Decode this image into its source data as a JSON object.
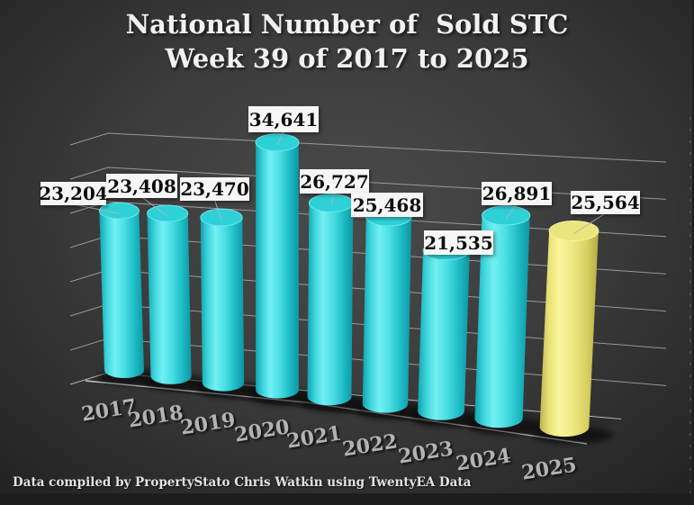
{
  "title": {
    "line1": "National Number of  Sold STC",
    "line2": "Week 39 of 2017 to 2025"
  },
  "footer": {
    "text": "Data compiled by PropertyStato Chris Watkin using TwentyEA Data"
  },
  "chart_data": {
    "type": "bar",
    "style": "3d-cylinder-perspective",
    "title": "National Number of Sold STC — Week 39 of 2017 to 2025",
    "categories": [
      "2017",
      "2018",
      "2019",
      "2020",
      "2021",
      "2022",
      "2023",
      "2024",
      "2025"
    ],
    "series": [
      {
        "name": "Sold STC",
        "values": [
          23204,
          23408,
          23470,
          34641,
          26727,
          25468,
          21535,
          26891,
          25564
        ]
      }
    ],
    "value_labels": [
      "23,204",
      "23,408",
      "23,470",
      "34,641",
      "26,727",
      "25,468",
      "21,535",
      "26,891",
      "25,564"
    ],
    "ylim": [
      0,
      35000
    ],
    "gridline_step": 5000,
    "grid": "on",
    "legend": "none",
    "xlabel": "",
    "ylabel": "",
    "bar_color": "#35d6dc",
    "highlight_category": "2025",
    "highlight_color": "#ece57a",
    "label_box_bg": "#f6f6f6",
    "label_text_color": "#0d0d0d",
    "year_label_color": "#b3b3b3",
    "gridline_color": "#bcbcbc"
  }
}
